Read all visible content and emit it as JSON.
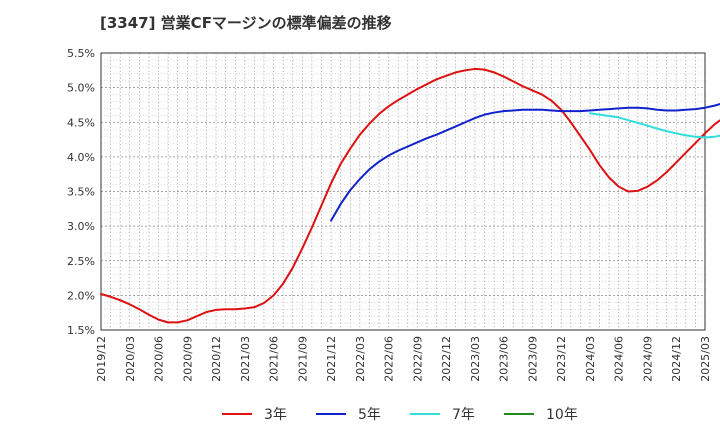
{
  "chart_data": {
    "type": "line",
    "title": "[3347]  営業CFマージンの標準偏差の推移",
    "xlabel": "",
    "ylabel": "",
    "ylim": [
      1.5,
      5.5
    ],
    "y_ticks": [
      "1.5%",
      "2.0%",
      "2.5%",
      "3.0%",
      "3.5%",
      "4.0%",
      "4.5%",
      "5.0%",
      "5.5%"
    ],
    "x_ticks": [
      "2019/12",
      "2020/03",
      "2020/06",
      "2020/09",
      "2020/12",
      "2021/03",
      "2021/06",
      "2021/09",
      "2021/12",
      "2022/03",
      "2022/06",
      "2022/09",
      "2022/12",
      "2023/03",
      "2023/06",
      "2023/09",
      "2023/12",
      "2024/03",
      "2024/06",
      "2024/09",
      "2024/12",
      "2025/03"
    ],
    "grid": true,
    "legend_position": "bottom",
    "series": [
      {
        "name": "3年",
        "color": "#dd1111",
        "values": [
          [
            "2019/12",
            2.02
          ],
          [
            "2020/01",
            1.98
          ],
          [
            "2020/02",
            1.93
          ],
          [
            "2020/03",
            1.87
          ],
          [
            "2020/04",
            1.8
          ],
          [
            "2020/05",
            1.72
          ],
          [
            "2020/06",
            1.65
          ],
          [
            "2020/07",
            1.61
          ],
          [
            "2020/08",
            1.61
          ],
          [
            "2020/09",
            1.64
          ],
          [
            "2020/10",
            1.7
          ],
          [
            "2020/11",
            1.76
          ],
          [
            "2020/12",
            1.79
          ],
          [
            "2021/01",
            1.8
          ],
          [
            "2021/02",
            1.8
          ],
          [
            "2021/03",
            1.81
          ],
          [
            "2021/04",
            1.83
          ],
          [
            "2021/05",
            1.89
          ],
          [
            "2021/06",
            2.0
          ],
          [
            "2021/07",
            2.17
          ],
          [
            "2021/08",
            2.4
          ],
          [
            "2021/09",
            2.68
          ],
          [
            "2021/10",
            2.98
          ],
          [
            "2021/11",
            3.3
          ],
          [
            "2021/12",
            3.62
          ],
          [
            "2022/01",
            3.9
          ],
          [
            "2022/02",
            4.12
          ],
          [
            "2022/03",
            4.32
          ],
          [
            "2022/04",
            4.48
          ],
          [
            "2022/05",
            4.62
          ],
          [
            "2022/06",
            4.73
          ],
          [
            "2022/07",
            4.82
          ],
          [
            "2022/08",
            4.9
          ],
          [
            "2022/09",
            4.98
          ],
          [
            "2022/10",
            5.05
          ],
          [
            "2022/11",
            5.12
          ],
          [
            "2022/12",
            5.17
          ],
          [
            "2023/01",
            5.22
          ],
          [
            "2023/02",
            5.25
          ],
          [
            "2023/03",
            5.27
          ],
          [
            "2023/04",
            5.26
          ],
          [
            "2023/05",
            5.22
          ],
          [
            "2023/06",
            5.16
          ],
          [
            "2023/07",
            5.09
          ],
          [
            "2023/08",
            5.02
          ],
          [
            "2023/09",
            4.96
          ],
          [
            "2023/10",
            4.9
          ],
          [
            "2023/11",
            4.81
          ],
          [
            "2023/12",
            4.68
          ],
          [
            "2024/01",
            4.5
          ],
          [
            "2024/02",
            4.3
          ],
          [
            "2024/03",
            4.1
          ],
          [
            "2024/04",
            3.88
          ],
          [
            "2024/05",
            3.7
          ],
          [
            "2024/06",
            3.57
          ],
          [
            "2024/07",
            3.5
          ],
          [
            "2024/08",
            3.51
          ],
          [
            "2024/09",
            3.57
          ],
          [
            "2024/10",
            3.66
          ],
          [
            "2024/11",
            3.78
          ],
          [
            "2024/12",
            3.92
          ],
          [
            "2025/01",
            4.06
          ],
          [
            "2025/02",
            4.2
          ],
          [
            "2025/03",
            4.34
          ],
          [
            "2025/04",
            4.47
          ],
          [
            "2025/05",
            4.57
          ],
          [
            "2025/06",
            4.64
          ]
        ]
      },
      {
        "name": "5年",
        "color": "#1122cc",
        "values": [
          [
            "2021/12",
            3.08
          ],
          [
            "2022/01",
            3.32
          ],
          [
            "2022/02",
            3.52
          ],
          [
            "2022/03",
            3.68
          ],
          [
            "2022/04",
            3.82
          ],
          [
            "2022/05",
            3.93
          ],
          [
            "2022/06",
            4.02
          ],
          [
            "2022/07",
            4.09
          ],
          [
            "2022/08",
            4.15
          ],
          [
            "2022/09",
            4.21
          ],
          [
            "2022/10",
            4.27
          ],
          [
            "2022/11",
            4.32
          ],
          [
            "2022/12",
            4.38
          ],
          [
            "2023/01",
            4.44
          ],
          [
            "2023/02",
            4.5
          ],
          [
            "2023/03",
            4.56
          ],
          [
            "2023/04",
            4.61
          ],
          [
            "2023/05",
            4.64
          ],
          [
            "2023/06",
            4.66
          ],
          [
            "2023/07",
            4.67
          ],
          [
            "2023/08",
            4.68
          ],
          [
            "2023/09",
            4.68
          ],
          [
            "2023/10",
            4.68
          ],
          [
            "2023/11",
            4.67
          ],
          [
            "2023/12",
            4.66
          ],
          [
            "2024/01",
            4.66
          ],
          [
            "2024/02",
            4.66
          ],
          [
            "2024/03",
            4.67
          ],
          [
            "2024/04",
            4.68
          ],
          [
            "2024/05",
            4.69
          ],
          [
            "2024/06",
            4.7
          ],
          [
            "2024/07",
            4.71
          ],
          [
            "2024/08",
            4.71
          ],
          [
            "2024/09",
            4.7
          ],
          [
            "2024/10",
            4.68
          ],
          [
            "2024/11",
            4.67
          ],
          [
            "2024/12",
            4.67
          ],
          [
            "2025/01",
            4.68
          ],
          [
            "2025/02",
            4.69
          ],
          [
            "2025/03",
            4.71
          ],
          [
            "2025/04",
            4.74
          ],
          [
            "2025/05",
            4.78
          ]
        ]
      },
      {
        "name": "7年",
        "color": "#33dddd",
        "values": [
          [
            "2024/03",
            4.63
          ],
          [
            "2024/04",
            4.61
          ],
          [
            "2024/05",
            4.59
          ],
          [
            "2024/06",
            4.57
          ],
          [
            "2024/07",
            4.53
          ],
          [
            "2024/08",
            4.49
          ],
          [
            "2024/09",
            4.45
          ],
          [
            "2024/10",
            4.41
          ],
          [
            "2024/11",
            4.37
          ],
          [
            "2024/12",
            4.34
          ],
          [
            "2025/01",
            4.31
          ],
          [
            "2025/02",
            4.29
          ],
          [
            "2025/03",
            4.28
          ],
          [
            "2025/04",
            4.29
          ],
          [
            "2025/05",
            4.32
          ]
        ]
      },
      {
        "name": "10年",
        "color": "#228822",
        "values": []
      }
    ]
  }
}
